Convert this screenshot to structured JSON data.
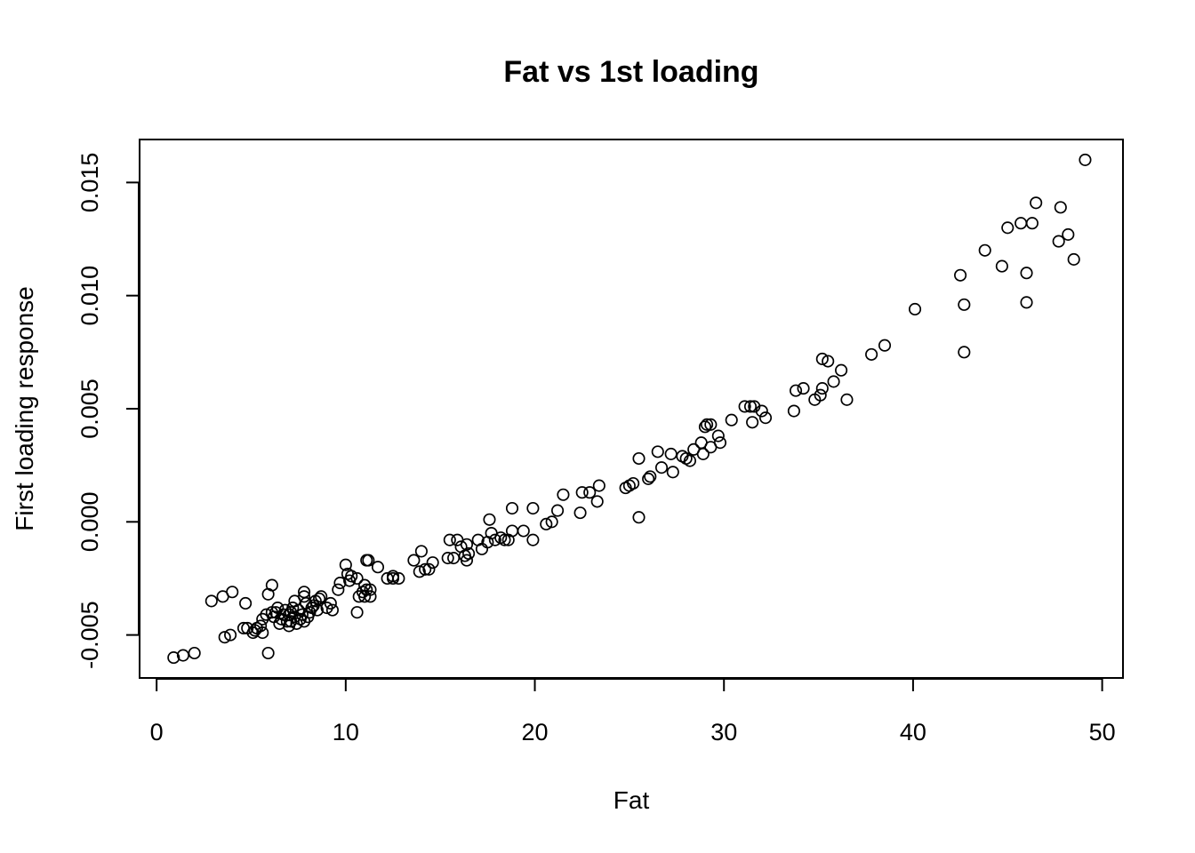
{
  "chart_data": {
    "type": "scatter",
    "title": "Fat vs 1st loading",
    "xlabel": "Fat",
    "ylabel": "First loading response",
    "xlim": [
      -0.9,
      51.1
    ],
    "ylim": [
      -0.0069,
      0.0169
    ],
    "x_ticks": [
      0,
      10,
      20,
      30,
      40,
      50
    ],
    "x_tick_labels": [
      "0",
      "10",
      "20",
      "30",
      "40",
      "50"
    ],
    "y_ticks": [
      -0.005,
      0.0,
      0.005,
      0.01,
      0.015
    ],
    "y_tick_labels": [
      "-0.005",
      "0.000",
      "0.005",
      "0.010",
      "0.015"
    ],
    "grid": false,
    "marker": "open-circle",
    "points": [
      [
        0.9,
        -0.006
      ],
      [
        1.4,
        -0.0059
      ],
      [
        2.0,
        -0.0058
      ],
      [
        2.9,
        -0.0035
      ],
      [
        3.5,
        -0.0033
      ],
      [
        3.6,
        -0.0051
      ],
      [
        3.9,
        -0.005
      ],
      [
        4.0,
        -0.0031
      ],
      [
        4.6,
        -0.0047
      ],
      [
        4.7,
        -0.0036
      ],
      [
        4.8,
        -0.0047
      ],
      [
        5.1,
        -0.0049
      ],
      [
        5.2,
        -0.0048
      ],
      [
        5.3,
        -0.0047
      ],
      [
        5.5,
        -0.0046
      ],
      [
        5.6,
        -0.0049
      ],
      [
        5.6,
        -0.0043
      ],
      [
        5.8,
        -0.0041
      ],
      [
        5.9,
        -0.0032
      ],
      [
        5.9,
        -0.0058
      ],
      [
        6.1,
        -0.0028
      ],
      [
        6.1,
        -0.004
      ],
      [
        6.2,
        -0.0042
      ],
      [
        6.3,
        -0.004
      ],
      [
        6.4,
        -0.0038
      ],
      [
        6.5,
        -0.0045
      ],
      [
        6.6,
        -0.0043
      ],
      [
        6.7,
        -0.0041
      ],
      [
        6.8,
        -0.0039
      ],
      [
        6.9,
        -0.0044
      ],
      [
        7.0,
        -0.0046
      ],
      [
        7.0,
        -0.0041
      ],
      [
        7.1,
        -0.004
      ],
      [
        7.1,
        -0.0044
      ],
      [
        7.2,
        -0.0038
      ],
      [
        7.3,
        -0.0042
      ],
      [
        7.3,
        -0.0035
      ],
      [
        7.4,
        -0.0045
      ],
      [
        7.5,
        -0.0039
      ],
      [
        7.6,
        -0.0043
      ],
      [
        7.7,
        -0.0041
      ],
      [
        7.8,
        -0.0044
      ],
      [
        7.8,
        -0.0031
      ],
      [
        7.8,
        -0.0033
      ],
      [
        7.9,
        -0.0036
      ],
      [
        8.0,
        -0.0042
      ],
      [
        8.1,
        -0.004
      ],
      [
        8.2,
        -0.0038
      ],
      [
        8.3,
        -0.0037
      ],
      [
        8.4,
        -0.0035
      ],
      [
        8.5,
        -0.0039
      ],
      [
        8.6,
        -0.0034
      ],
      [
        8.7,
        -0.0033
      ],
      [
        9.0,
        -0.0038
      ],
      [
        9.2,
        -0.0036
      ],
      [
        9.3,
        -0.0039
      ],
      [
        9.6,
        -0.003
      ],
      [
        9.7,
        -0.0027
      ],
      [
        10.0,
        -0.0019
      ],
      [
        10.1,
        -0.0023
      ],
      [
        10.2,
        -0.0026
      ],
      [
        10.3,
        -0.0024
      ],
      [
        10.6,
        -0.0025
      ],
      [
        10.6,
        -0.004
      ],
      [
        10.7,
        -0.0033
      ],
      [
        10.9,
        -0.0031
      ],
      [
        11.0,
        -0.0028
      ],
      [
        11.0,
        -0.0033
      ],
      [
        11.1,
        -0.003
      ],
      [
        11.1,
        -0.0017
      ],
      [
        11.2,
        -0.0017
      ],
      [
        11.3,
        -0.0033
      ],
      [
        11.3,
        -0.003
      ],
      [
        11.7,
        -0.002
      ],
      [
        12.2,
        -0.0025
      ],
      [
        12.5,
        -0.0025
      ],
      [
        12.5,
        -0.0024
      ],
      [
        12.8,
        -0.0025
      ],
      [
        13.6,
        -0.0017
      ],
      [
        13.9,
        -0.0022
      ],
      [
        14.0,
        -0.0013
      ],
      [
        14.2,
        -0.0021
      ],
      [
        14.4,
        -0.0021
      ],
      [
        14.6,
        -0.0018
      ],
      [
        15.4,
        -0.0016
      ],
      [
        15.5,
        -0.0008
      ],
      [
        15.7,
        -0.0016
      ],
      [
        15.9,
        -0.0008
      ],
      [
        16.1,
        -0.0011
      ],
      [
        16.3,
        -0.0015
      ],
      [
        16.4,
        -0.001
      ],
      [
        16.4,
        -0.0017
      ],
      [
        16.5,
        -0.0014
      ],
      [
        17.0,
        -0.0008
      ],
      [
        17.2,
        -0.0012
      ],
      [
        17.5,
        -0.0009
      ],
      [
        17.6,
        0.0001
      ],
      [
        17.7,
        -0.0005
      ],
      [
        17.9,
        -0.0008
      ],
      [
        18.2,
        -0.0007
      ],
      [
        18.4,
        -0.0008
      ],
      [
        18.6,
        -0.0008
      ],
      [
        18.8,
        -0.0004
      ],
      [
        18.8,
        0.0006
      ],
      [
        19.4,
        -0.0004
      ],
      [
        19.9,
        -0.0008
      ],
      [
        19.9,
        0.0006
      ],
      [
        20.6,
        -0.0001
      ],
      [
        20.9,
        0.0
      ],
      [
        21.2,
        0.0005
      ],
      [
        21.5,
        0.0012
      ],
      [
        22.4,
        0.0004
      ],
      [
        22.5,
        0.0013
      ],
      [
        22.9,
        0.0013
      ],
      [
        23.3,
        0.0009
      ],
      [
        23.4,
        0.0016
      ],
      [
        24.8,
        0.0015
      ],
      [
        25.0,
        0.0016
      ],
      [
        25.2,
        0.0017
      ],
      [
        25.5,
        0.0028
      ],
      [
        25.5,
        0.0002
      ],
      [
        26.0,
        0.0019
      ],
      [
        26.1,
        0.002
      ],
      [
        26.5,
        0.0031
      ],
      [
        26.7,
        0.0024
      ],
      [
        27.2,
        0.003
      ],
      [
        27.3,
        0.0022
      ],
      [
        27.8,
        0.0029
      ],
      [
        28.0,
        0.0028
      ],
      [
        28.2,
        0.0027
      ],
      [
        28.4,
        0.0032
      ],
      [
        28.8,
        0.0035
      ],
      [
        28.9,
        0.003
      ],
      [
        29.0,
        0.0042
      ],
      [
        29.1,
        0.0043
      ],
      [
        29.3,
        0.0033
      ],
      [
        29.3,
        0.0043
      ],
      [
        29.7,
        0.0038
      ],
      [
        29.8,
        0.0035
      ],
      [
        30.4,
        0.0045
      ],
      [
        31.1,
        0.0051
      ],
      [
        31.4,
        0.0051
      ],
      [
        31.5,
        0.0044
      ],
      [
        31.6,
        0.0051
      ],
      [
        32.0,
        0.0049
      ],
      [
        32.2,
        0.0046
      ],
      [
        33.7,
        0.0049
      ],
      [
        33.8,
        0.0058
      ],
      [
        34.2,
        0.0059
      ],
      [
        34.8,
        0.0054
      ],
      [
        35.1,
        0.0056
      ],
      [
        35.2,
        0.0059
      ],
      [
        35.2,
        0.0072
      ],
      [
        35.5,
        0.0071
      ],
      [
        35.8,
        0.0062
      ],
      [
        36.2,
        0.0067
      ],
      [
        36.5,
        0.0054
      ],
      [
        37.8,
        0.0074
      ],
      [
        38.5,
        0.0078
      ],
      [
        40.1,
        0.0094
      ],
      [
        42.5,
        0.0109
      ],
      [
        42.7,
        0.0096
      ],
      [
        42.7,
        0.0075
      ],
      [
        43.8,
        0.012
      ],
      [
        44.7,
        0.0113
      ],
      [
        45.0,
        0.013
      ],
      [
        45.7,
        0.0132
      ],
      [
        46.0,
        0.011
      ],
      [
        46.0,
        0.0097
      ],
      [
        46.3,
        0.0132
      ],
      [
        46.5,
        0.0141
      ],
      [
        47.7,
        0.0124
      ],
      [
        47.8,
        0.0139
      ],
      [
        48.2,
        0.0127
      ],
      [
        48.5,
        0.0116
      ],
      [
        49.1,
        0.016
      ]
    ]
  }
}
